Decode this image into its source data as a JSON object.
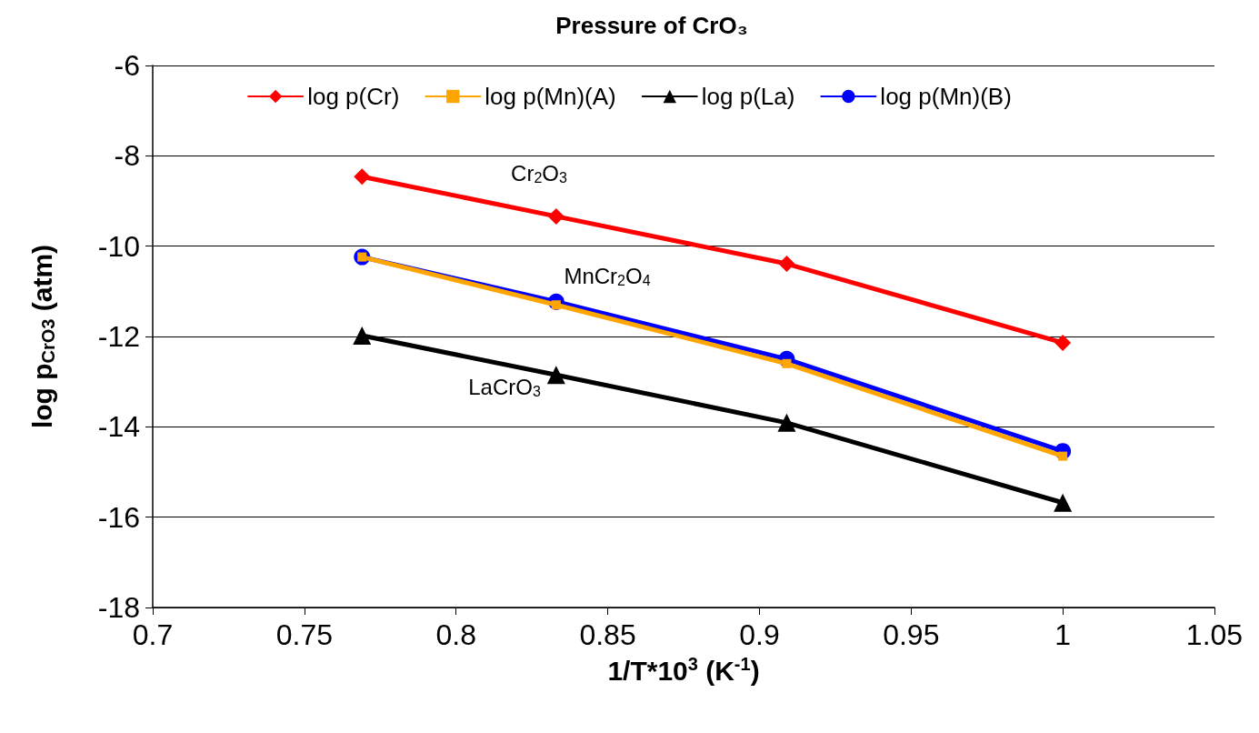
{
  "chart_data": {
    "type": "line",
    "title": "Pressure of CrO₃",
    "xlabel": "1/T*10$^{3}$ (K$^{-1}$)",
    "ylabel": "log p$_{CrO3}$ (atm)",
    "x": [
      0.769,
      0.833,
      0.909,
      1.0
    ],
    "series": [
      {
        "name": "log p(Cr)",
        "color": "#ff0000",
        "marker": "diamond",
        "values": [
          -8.46,
          -9.34,
          -10.39,
          -12.14
        ]
      },
      {
        "name": "log p(Mn)(A)",
        "color": "#ffa500",
        "marker": "square",
        "values": [
          -10.24,
          -11.3,
          -12.6,
          -14.65
        ]
      },
      {
        "name": "log p(La)",
        "color": "#000000",
        "marker": "triangle",
        "values": [
          -11.98,
          -12.85,
          -13.91,
          -15.68
        ]
      },
      {
        "name": "log p(Mn)(B)",
        "color": "#0000ff",
        "marker": "circle",
        "values": [
          -10.24,
          -11.23,
          -12.5,
          -14.54
        ]
      }
    ],
    "annotations": [
      "Cr$_{2}$O$_{3}$",
      "MnCr$_{2}$O$_{4}$",
      "LaCrO$_{3}$"
    ],
    "xlim": [
      0.7,
      1.05
    ],
    "xticks": [
      0.7,
      0.75,
      0.8,
      0.85,
      0.9,
      0.95,
      1,
      1.05
    ],
    "ylim": [
      -18,
      -6
    ],
    "yticks": [
      -18,
      -16,
      -14,
      -12,
      -10,
      -8,
      -6
    ],
    "grid": "y",
    "legend": "top",
    "line_style": "solid"
  }
}
